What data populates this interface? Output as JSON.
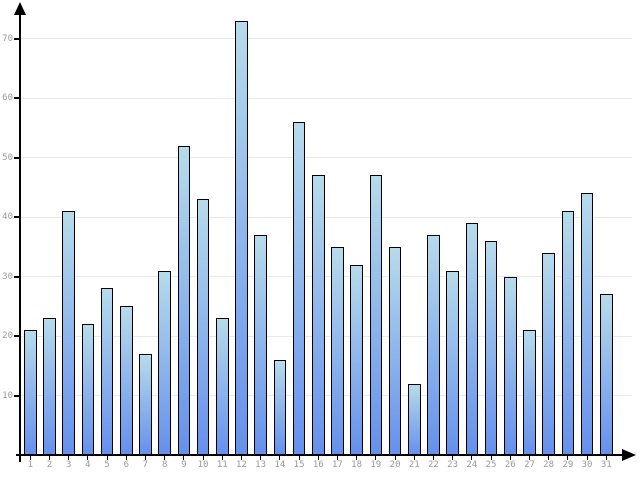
{
  "chart_data": {
    "type": "bar",
    "title": "",
    "xlabel": "",
    "ylabel": "",
    "categories": [
      "1",
      "2",
      "3",
      "4",
      "5",
      "6",
      "7",
      "8",
      "9",
      "10",
      "11",
      "12",
      "13",
      "14",
      "15",
      "16",
      "17",
      "18",
      "19",
      "20",
      "21",
      "22",
      "23",
      "24",
      "25",
      "26",
      "27",
      "28",
      "29",
      "30",
      "31"
    ],
    "values": [
      21,
      23,
      41,
      22,
      28,
      25,
      17,
      31,
      52,
      43,
      23,
      73,
      37,
      16,
      56,
      47,
      35,
      32,
      47,
      35,
      12,
      37,
      31,
      39,
      36,
      30,
      21,
      34,
      41,
      44,
      27
    ],
    "yticks": [
      10,
      20,
      30,
      40,
      50,
      60,
      70
    ],
    "ylim": [
      0,
      75
    ],
    "grid": true,
    "legend": false,
    "axis_arrows": true
  },
  "style": {
    "background": "#ffffff",
    "bar_fill_top": "#b7dbeb",
    "bar_fill_bottom": "#6590ec",
    "bar_border": "#000000",
    "axis_color": "#000000",
    "gridline_color": "#e8e8e8",
    "label_color": "#999999"
  }
}
